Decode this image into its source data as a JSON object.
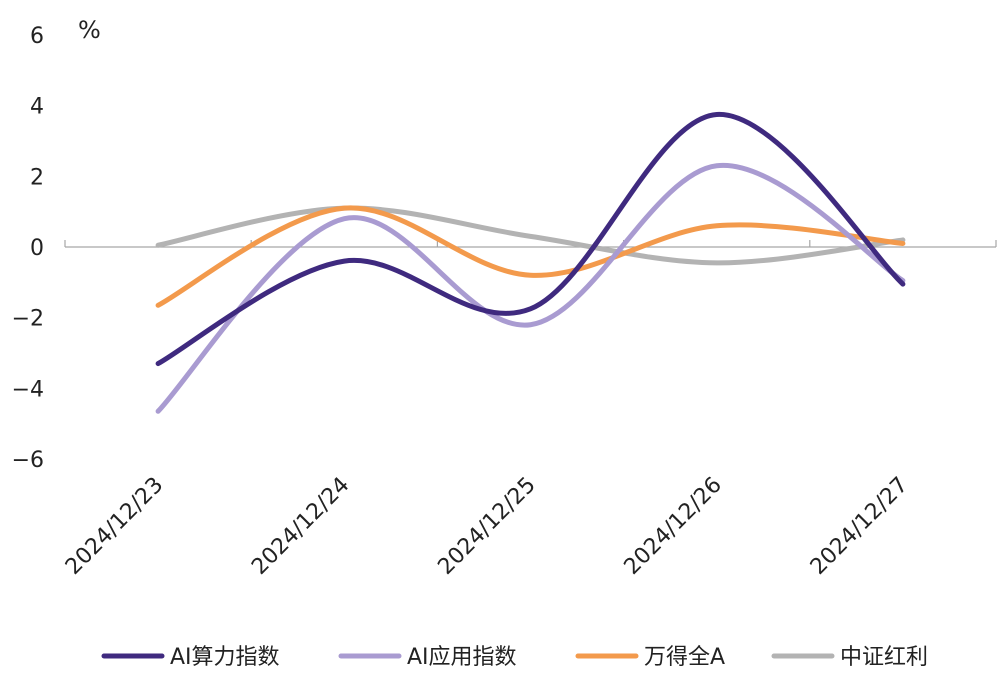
{
  "chart_data": {
    "type": "line",
    "unit_label": "%",
    "categories": [
      "2024/12/23",
      "2024/12/24",
      "2024/12/25",
      "2024/12/26",
      "2024/12/27"
    ],
    "ylim": [
      -6,
      6
    ],
    "yticks": [
      6,
      4,
      2,
      0,
      -2,
      -4,
      -6
    ],
    "ytick_labels": [
      "6",
      "4",
      "2",
      "0",
      "−2",
      "−4",
      "−6"
    ],
    "grid": false,
    "legend_position": "bottom",
    "series": [
      {
        "name": "AI算力指数",
        "color": "#3f2a7f",
        "values": [
          -3.3,
          -0.4,
          -1.75,
          3.75,
          -1.05
        ]
      },
      {
        "name": "AI应用指数",
        "color": "#a99bd1",
        "values": [
          -4.65,
          0.8,
          -2.2,
          2.3,
          -0.95
        ]
      },
      {
        "name": "万得全A",
        "color": "#f39a4c",
        "values": [
          -1.65,
          1.1,
          -0.8,
          0.6,
          0.1
        ]
      },
      {
        "name": "中证红利",
        "color": "#b3b3b3",
        "values": [
          0.05,
          1.1,
          0.3,
          -0.45,
          0.2
        ]
      }
    ]
  }
}
